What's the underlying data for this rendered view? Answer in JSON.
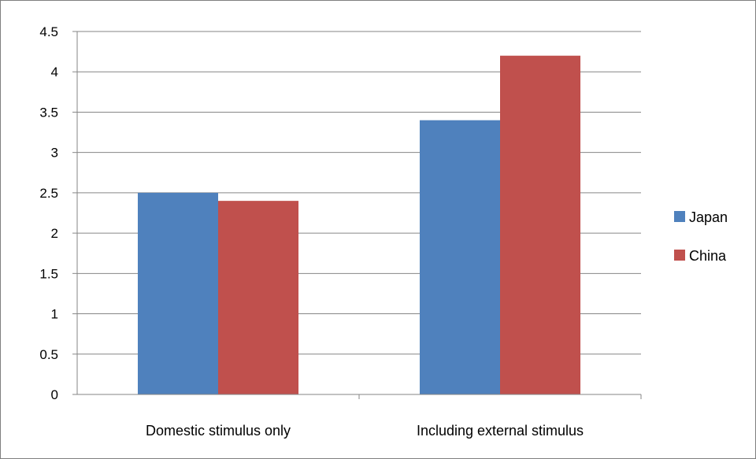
{
  "chart_data": {
    "type": "bar",
    "categories": [
      "Domestic stimulus only",
      "Including external stimulus"
    ],
    "series": [
      {
        "name": "Japan",
        "values": [
          2.5,
          3.4
        ],
        "color": "#4f81bd"
      },
      {
        "name": "China",
        "values": [
          2.4,
          4.2
        ],
        "color": "#c0504d"
      }
    ],
    "ylim": [
      0,
      4.5
    ],
    "yticks": [
      "0",
      "0.5",
      "1",
      "1.5",
      "2",
      "2.5",
      "3",
      "3.5",
      "4",
      "4.5"
    ],
    "grid": true,
    "legend": "right"
  }
}
